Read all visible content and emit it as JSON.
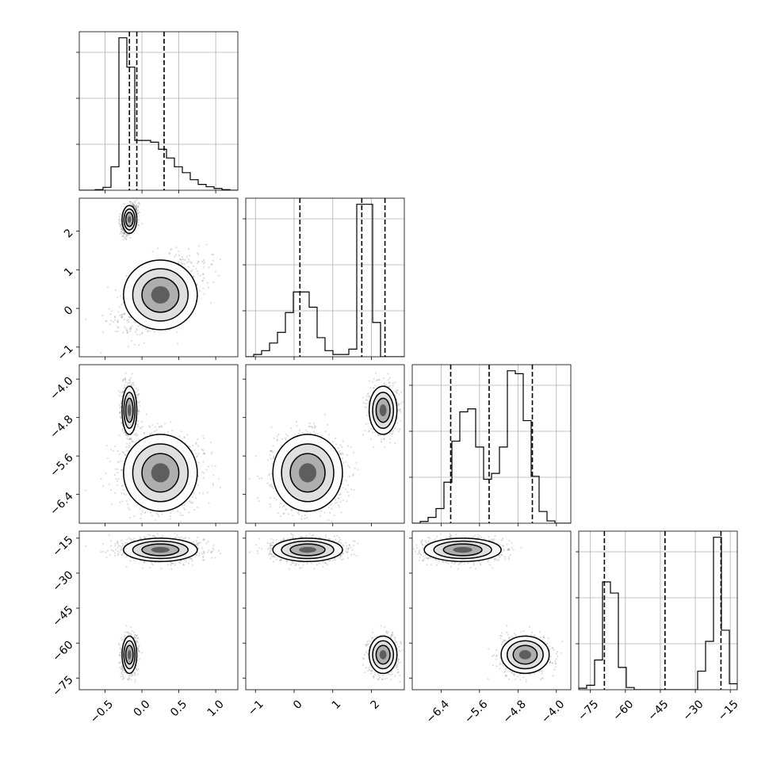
{
  "chart_data": {
    "type": "corner",
    "parameters": [
      {
        "ticks": [
          -0.5,
          0.0,
          0.5,
          1.0
        ],
        "tick_labels": [
          "−0.5",
          "0.0",
          "0.5",
          "1.0"
        ],
        "range": [
          -0.85,
          1.3
        ]
      },
      {
        "ticks": [
          -1,
          0,
          1,
          2
        ],
        "tick_labels": [
          "−1",
          "0",
          "1",
          "2"
        ],
        "range": [
          -1.25,
          2.85
        ]
      },
      {
        "ticks": [
          -6.4,
          -5.6,
          -4.8,
          -4.0
        ],
        "tick_labels": [
          "−6.4",
          "−5.6",
          "−4.8",
          "−4.0"
        ],
        "range": [
          -7.0,
          -3.7
        ]
      },
      {
        "ticks": [
          -75,
          -60,
          -45,
          -30,
          -15
        ],
        "tick_labels": [
          "−75",
          "−60",
          "−45",
          "−30",
          "−15"
        ],
        "range": [
          -80,
          -12
        ]
      }
    ],
    "quantiles": [
      [
        -0.17,
        -0.07,
        0.3
      ],
      [
        0.15,
        1.75,
        2.35
      ],
      [
        -6.2,
        -5.4,
        -4.5
      ],
      [
        -69,
        -43,
        -19
      ]
    ],
    "histograms": [
      {
        "edges_start": -0.85,
        "bin_width": 0.1075,
        "counts": [
          0,
          0,
          1,
          5,
          40,
          260,
          210,
          85,
          85,
          82,
          70,
          55,
          40,
          30,
          18,
          10,
          6,
          3,
          1,
          0
        ]
      },
      {
        "edges_start": -1.25,
        "bin_width": 0.205,
        "counts": [
          0,
          3,
          8,
          18,
          32,
          58,
          85,
          85,
          65,
          25,
          8,
          3,
          3,
          10,
          200,
          200,
          45,
          0,
          0,
          0
        ]
      },
      {
        "edges_start": -7.0,
        "bin_width": 0.165,
        "counts": [
          0,
          3,
          10,
          25,
          70,
          140,
          190,
          195,
          130,
          75,
          85,
          130,
          260,
          255,
          175,
          80,
          20,
          4,
          0,
          0
        ]
      },
      {
        "edges_start": -80,
        "bin_width": 3.4,
        "counts": [
          2,
          6,
          40,
          145,
          130,
          30,
          3,
          0,
          0,
          0,
          0,
          0,
          0,
          0,
          0,
          25,
          65,
          205,
          80,
          8
        ]
      }
    ],
    "modes": [
      {
        "weight": 0.4,
        "mean": [
          -0.17,
          2.3,
          -4.65,
          -65
        ],
        "sd": [
          0.05,
          0.18,
          0.25,
          4
        ]
      },
      {
        "weight": 0.6,
        "mean": [
          0.25,
          0.35,
          -5.95,
          -20
        ],
        "sd": [
          0.25,
          0.45,
          0.4,
          2.5
        ]
      }
    ]
  }
}
